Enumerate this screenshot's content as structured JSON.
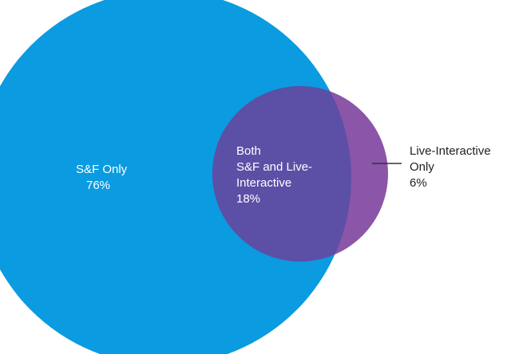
{
  "colors": {
    "large_circle": "#0A9BE0",
    "overlap": "#5C4FA6",
    "small_circle_only": "#8B55A8",
    "leader_line": "#333333",
    "background": "#FFFFFF"
  },
  "regions": {
    "left": {
      "name": "S&F Only",
      "value": "76%"
    },
    "both": {
      "line1": "Both",
      "line2": "S&F and Live-",
      "line3": "Interactive",
      "value": "18%"
    },
    "right": {
      "line1": "Live-Interactive",
      "line2": "Only",
      "value": "6%"
    }
  }
}
